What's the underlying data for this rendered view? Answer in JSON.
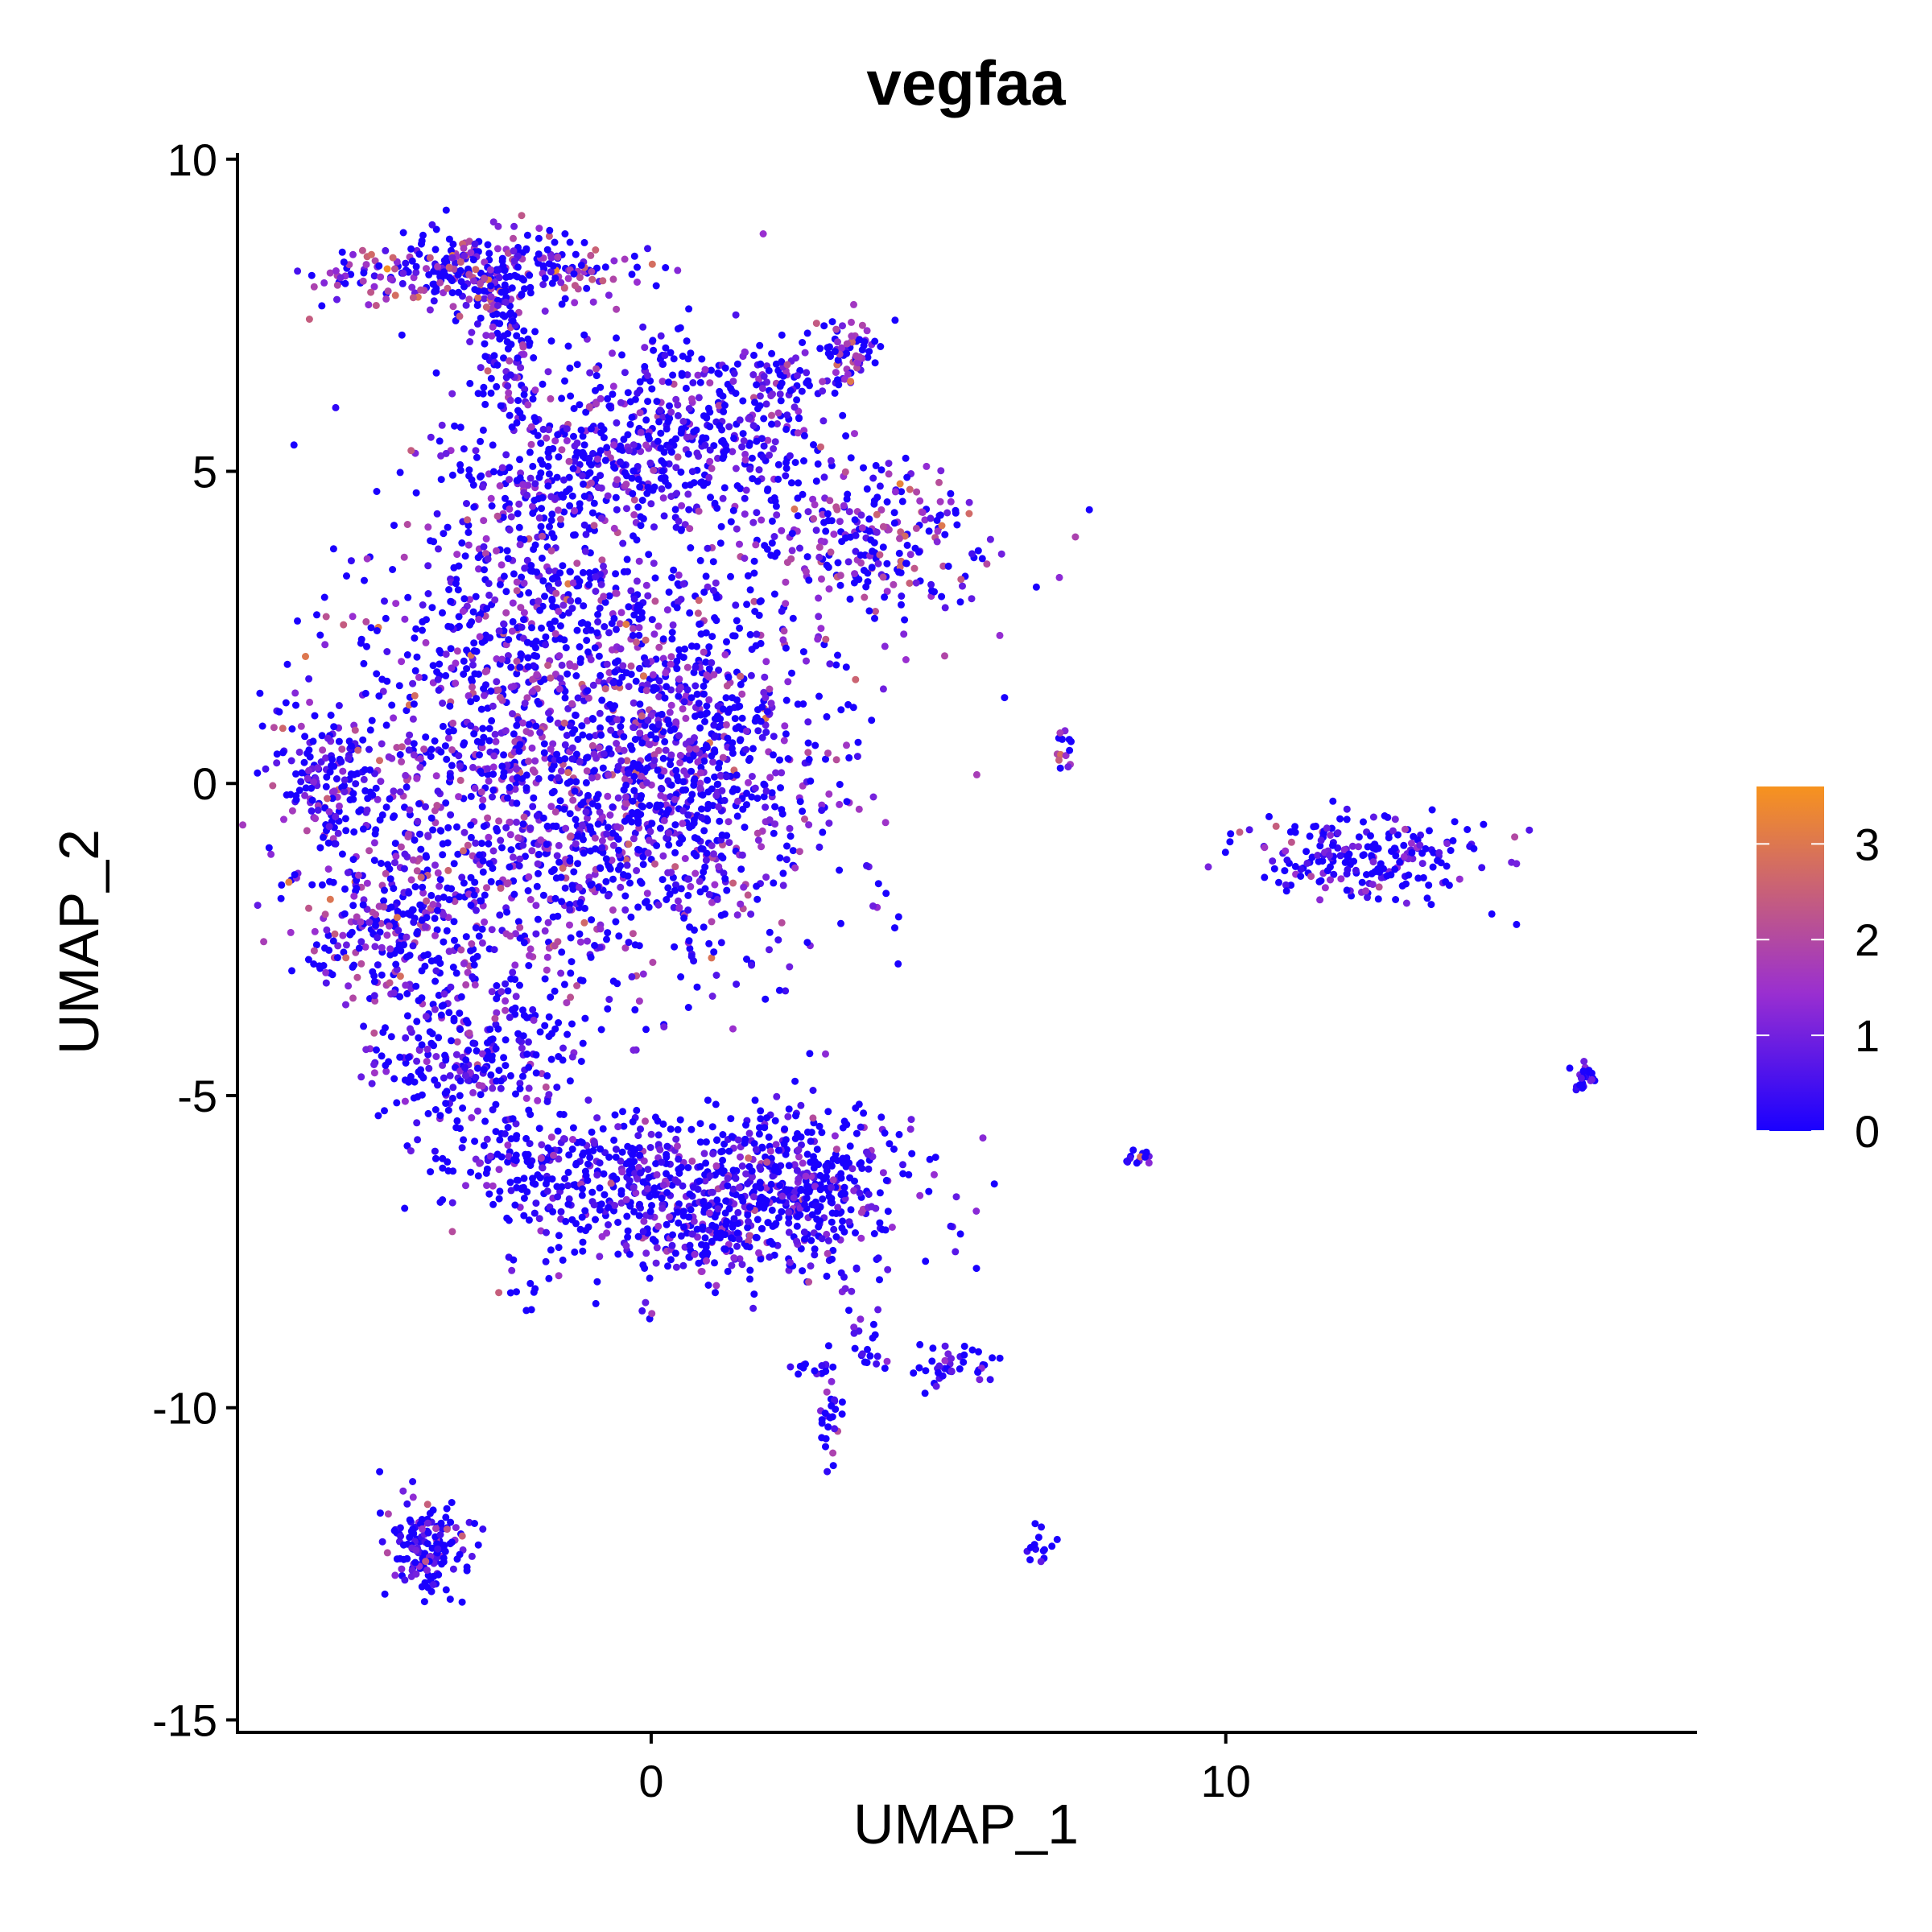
{
  "chart_data": {
    "type": "scatter",
    "title": "vegfaa",
    "xlabel": "UMAP_1",
    "ylabel": "UMAP_2",
    "xlim": [
      -7.2,
      18.2
    ],
    "ylim": [
      -15.2,
      10.1
    ],
    "xticks": [
      0,
      10
    ],
    "yticks": [
      10,
      5,
      0,
      -5,
      -10,
      -15
    ],
    "grid": false,
    "legend": {
      "type": "colorbar",
      "placement": "right",
      "range": [
        0,
        3.6
      ],
      "ticks": [
        0,
        1,
        2,
        3
      ],
      "low_color": "#1a00ff",
      "mid_color": "#9a2fd0",
      "high_color": "#f7931e"
    },
    "clusters": [
      {
        "cx": -3.0,
        "cy": 8.2,
        "sx": 1.3,
        "sy": 0.3,
        "n": 340,
        "mean_expr": 1.5
      },
      {
        "cx": -2.5,
        "cy": 7.2,
        "sx": 0.3,
        "sy": 0.6,
        "n": 90,
        "mean_expr": 1.0
      },
      {
        "cx": -1.5,
        "cy": 5.2,
        "sx": 1.2,
        "sy": 0.9,
        "n": 380,
        "mean_expr": 0.8
      },
      {
        "cx": 1.0,
        "cy": 5.4,
        "sx": 1.2,
        "sy": 0.7,
        "n": 300,
        "mean_expr": 0.7
      },
      {
        "cx": 1.8,
        "cy": 6.5,
        "sx": 0.7,
        "sy": 0.4,
        "n": 90,
        "mean_expr": 0.9
      },
      {
        "cx": 3.5,
        "cy": 6.9,
        "sx": 0.3,
        "sy": 0.3,
        "n": 70,
        "mean_expr": 1.5
      },
      {
        "cx": 3.8,
        "cy": 3.9,
        "sx": 1.0,
        "sy": 0.6,
        "n": 260,
        "mean_expr": 1.4
      },
      {
        "cx": -2.0,
        "cy": 2.8,
        "sx": 1.0,
        "sy": 0.9,
        "n": 220,
        "mean_expr": 1.1
      },
      {
        "cx": -1.5,
        "cy": 0.0,
        "sx": 2.0,
        "sy": 1.7,
        "n": 1500,
        "mean_expr": 1.3
      },
      {
        "cx": 0.8,
        "cy": 0.3,
        "sx": 1.1,
        "sy": 1.4,
        "n": 500,
        "mean_expr": 0.8
      },
      {
        "cx": -5.6,
        "cy": 0.0,
        "sx": 0.5,
        "sy": 0.6,
        "n": 140,
        "mean_expr": 0.9
      },
      {
        "cx": -4.5,
        "cy": -2.3,
        "sx": 0.8,
        "sy": 0.6,
        "n": 220,
        "mean_expr": 1.4
      },
      {
        "cx": -3.0,
        "cy": -4.3,
        "sx": 0.8,
        "sy": 0.6,
        "n": 260,
        "mean_expr": 0.9
      },
      {
        "cx": -1.2,
        "cy": -6.1,
        "sx": 1.3,
        "sy": 0.4,
        "n": 280,
        "mean_expr": 0.5
      },
      {
        "cx": 1.0,
        "cy": -6.9,
        "sx": 1.3,
        "sy": 0.6,
        "n": 450,
        "mean_expr": 0.8
      },
      {
        "cx": 2.8,
        "cy": -6.4,
        "sx": 0.9,
        "sy": 0.6,
        "n": 300,
        "mean_expr": 0.6
      },
      {
        "cx": -3.9,
        "cy": -12.3,
        "sx": 0.35,
        "sy": 0.4,
        "n": 160,
        "mean_expr": 0.7
      },
      {
        "cx": 12.5,
        "cy": -1.2,
        "sx": 1.0,
        "sy": 0.35,
        "n": 220,
        "mean_expr": 0.7
      },
      {
        "cx": 16.2,
        "cy": -4.7,
        "sx": 0.1,
        "sy": 0.1,
        "n": 25,
        "mean_expr": 0.6
      },
      {
        "cx": 7.2,
        "cy": 0.5,
        "sx": 0.06,
        "sy": 0.2,
        "n": 14,
        "mean_expr": 1.8
      },
      {
        "cx": 8.5,
        "cy": -6.0,
        "sx": 0.15,
        "sy": 0.08,
        "n": 14,
        "mean_expr": 1.2
      },
      {
        "cx": 6.8,
        "cy": -12.2,
        "sx": 0.1,
        "sy": 0.15,
        "n": 14,
        "mean_expr": 0.5
      },
      {
        "cx": 5.3,
        "cy": -9.3,
        "sx": 0.4,
        "sy": 0.2,
        "n": 40,
        "mean_expr": 0.5
      },
      {
        "cx": 3.1,
        "cy": -10.0,
        "sx": 0.1,
        "sy": 0.4,
        "n": 30,
        "mean_expr": 0.9
      },
      {
        "cx": 2.8,
        "cy": -9.4,
        "sx": 0.15,
        "sy": 0.08,
        "n": 10,
        "mean_expr": 1.2
      },
      {
        "cx": 3.6,
        "cy": -8.6,
        "sx": 0.15,
        "sy": 0.3,
        "n": 12,
        "mean_expr": 0.8
      },
      {
        "cx": 3.9,
        "cy": -9.2,
        "sx": 0.15,
        "sy": 0.1,
        "n": 10,
        "mean_expr": 0.6
      },
      {
        "cx": -2.2,
        "cy": -7.7,
        "sx": 0.2,
        "sy": 0.4,
        "n": 14,
        "mean_expr": 0.4
      },
      {
        "cx": -4.8,
        "cy": -4.2,
        "sx": 0.1,
        "sy": 0.4,
        "n": 12,
        "mean_expr": 1.2
      },
      {
        "cx": 0.3,
        "cy": 6.9,
        "sx": 0.2,
        "sy": 0.1,
        "n": 10,
        "mean_expr": 0.4
      }
    ]
  }
}
